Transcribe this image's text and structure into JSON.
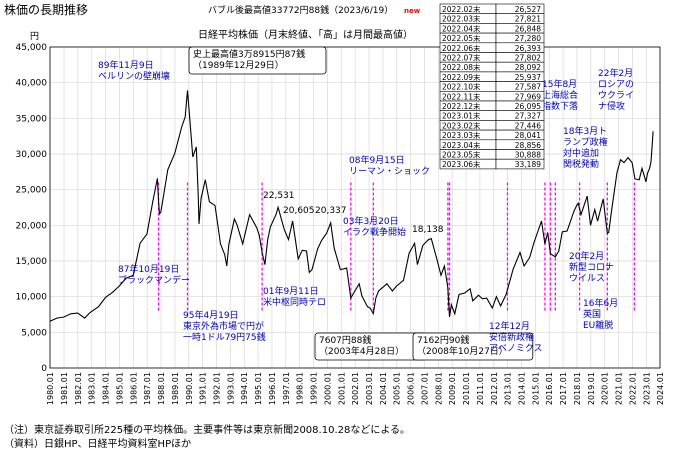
{
  "chart_data": {
    "type": "line",
    "title": "株価の長期推移",
    "subtitle": "日経平均株価（月末終値、「高」は月間最高値）",
    "header_note": "バブル後最高値33772円88銭（2023/6/19）",
    "header_badge": "new",
    "y_unit": "円",
    "ylim": [
      0,
      45000
    ],
    "y_ticks": [
      "0",
      "5,000",
      "10,000",
      "15,000",
      "20,000",
      "25,000",
      "30,000",
      "35,000",
      "40,000",
      "45,000"
    ],
    "x_ticks": [
      "1980.01",
      "1981.01",
      "1982.01",
      "1983.01",
      "1984.01",
      "1985.01",
      "1986.01",
      "1987.01",
      "1988.01",
      "1989.01",
      "1990.01",
      "1991.01",
      "1992.01",
      "1993.01",
      "1994.01",
      "1995.01",
      "1996.01",
      "1997.01",
      "1998.01",
      "1999.01",
      "2000.01",
      "2001.01",
      "2002.01",
      "2003.01",
      "2004.01",
      "2005.01",
      "2006.01",
      "2007.01",
      "2008.01",
      "2009.01",
      "2010.01",
      "2011.01",
      "2012.01",
      "2013.01",
      "2014.01",
      "2015.01",
      "2016.01",
      "2017.01",
      "2018.01",
      "2019.01",
      "2020.01",
      "2021.01",
      "2022.01",
      "2023.01",
      "2024.01"
    ],
    "xlim": [
      1980.0,
      2024.0
    ],
    "series": [
      {
        "color": "#000000",
        "points": [
          [
            1980.0,
            6560
          ],
          [
            1980.5,
            7000
          ],
          [
            1981.0,
            7150
          ],
          [
            1981.5,
            7600
          ],
          [
            1982.0,
            7700
          ],
          [
            1982.5,
            7000
          ],
          [
            1982.9,
            7800
          ],
          [
            1983.5,
            8600
          ],
          [
            1984.0,
            9900
          ],
          [
            1984.5,
            10600
          ],
          [
            1985.0,
            11500
          ],
          [
            1985.5,
            12600
          ],
          [
            1986.0,
            13000
          ],
          [
            1986.5,
            17500
          ],
          [
            1987.0,
            18800
          ],
          [
            1987.4,
            23200
          ],
          [
            1987.75,
            26600
          ],
          [
            1987.83,
            23300
          ],
          [
            1987.9,
            21600
          ],
          [
            1988.0,
            21900
          ],
          [
            1988.5,
            27800
          ],
          [
            1989.0,
            30100
          ],
          [
            1989.5,
            33800
          ],
          [
            1989.75,
            35200
          ],
          [
            1989.92,
            38915
          ],
          [
            1990.15,
            33300
          ],
          [
            1990.3,
            29600
          ],
          [
            1990.55,
            31000
          ],
          [
            1990.7,
            23900
          ],
          [
            1990.75,
            20200
          ],
          [
            1990.9,
            23800
          ],
          [
            1991.2,
            26400
          ],
          [
            1991.5,
            23300
          ],
          [
            1991.9,
            22800
          ],
          [
            1992.3,
            17400
          ],
          [
            1992.6,
            15900
          ],
          [
            1992.75,
            14300
          ],
          [
            1992.9,
            17300
          ],
          [
            1993.3,
            20900
          ],
          [
            1993.5,
            20000
          ],
          [
            1993.9,
            17400
          ],
          [
            1994.4,
            21500
          ],
          [
            1994.9,
            19700
          ],
          [
            1995.1,
            18600
          ],
          [
            1995.3,
            16200
          ],
          [
            1995.5,
            14500
          ],
          [
            1995.7,
            18000
          ],
          [
            1995.9,
            19800
          ],
          [
            1996.3,
            21500
          ],
          [
            1996.45,
            22531
          ],
          [
            1996.9,
            19400
          ],
          [
            1997.2,
            18000
          ],
          [
            1997.5,
            20605
          ],
          [
            1997.9,
            15300
          ],
          [
            1998.2,
            16500
          ],
          [
            1998.5,
            16400
          ],
          [
            1998.7,
            13400
          ],
          [
            1998.9,
            13800
          ],
          [
            1999.3,
            16700
          ],
          [
            1999.6,
            17900
          ],
          [
            1999.95,
            18900
          ],
          [
            2000.25,
            20337
          ],
          [
            2000.5,
            16800
          ],
          [
            2000.95,
            13800
          ],
          [
            2001.2,
            13900
          ],
          [
            2001.4,
            14000
          ],
          [
            2001.7,
            9800
          ],
          [
            2001.9,
            10500
          ],
          [
            2002.3,
            11800
          ],
          [
            2002.5,
            10100
          ],
          [
            2002.9,
            8600
          ],
          [
            2003.1,
            8400
          ],
          [
            2003.32,
            7607
          ],
          [
            2003.5,
            9800
          ],
          [
            2003.7,
            10800
          ],
          [
            2004.0,
            11300
          ],
          [
            2004.3,
            11800
          ],
          [
            2004.7,
            10800
          ],
          [
            2005.0,
            11500
          ],
          [
            2005.5,
            12300
          ],
          [
            2005.9,
            16100
          ],
          [
            2006.3,
            17500
          ],
          [
            2006.5,
            14500
          ],
          [
            2006.9,
            17200
          ],
          [
            2007.3,
            18000
          ],
          [
            2007.5,
            18138
          ],
          [
            2007.9,
            15300
          ],
          [
            2008.2,
            13000
          ],
          [
            2008.45,
            14300
          ],
          [
            2008.7,
            11200
          ],
          [
            2008.82,
            7162
          ],
          [
            2008.95,
            8860
          ],
          [
            2009.2,
            7600
          ],
          [
            2009.5,
            10300
          ],
          [
            2009.9,
            10500
          ],
          [
            2010.3,
            11100
          ],
          [
            2010.5,
            9400
          ],
          [
            2010.9,
            10200
          ],
          [
            2011.2,
            9700
          ],
          [
            2011.5,
            9800
          ],
          [
            2011.9,
            8400
          ],
          [
            2012.2,
            10000
          ],
          [
            2012.5,
            8700
          ],
          [
            2012.9,
            10300
          ],
          [
            2013.2,
            12400
          ],
          [
            2013.4,
            13800
          ],
          [
            2013.9,
            16200
          ],
          [
            2014.2,
            14300
          ],
          [
            2014.6,
            15500
          ],
          [
            2014.9,
            17500
          ],
          [
            2015.2,
            19200
          ],
          [
            2015.45,
            20600
          ],
          [
            2015.7,
            17400
          ],
          [
            2015.9,
            19000
          ],
          [
            2016.1,
            16000
          ],
          [
            2016.45,
            15600
          ],
          [
            2016.7,
            16400
          ],
          [
            2016.95,
            19100
          ],
          [
            2017.3,
            19200
          ],
          [
            2017.8,
            22000
          ],
          [
            2017.99,
            22800
          ],
          [
            2018.1,
            23100
          ],
          [
            2018.3,
            21500
          ],
          [
            2018.75,
            24100
          ],
          [
            2018.99,
            20000
          ],
          [
            2019.3,
            22200
          ],
          [
            2019.5,
            20600
          ],
          [
            2019.9,
            23700
          ],
          [
            2020.2,
            18900
          ],
          [
            2020.3,
            19000
          ],
          [
            2020.5,
            22000
          ],
          [
            2020.9,
            27400
          ],
          [
            2021.15,
            29200
          ],
          [
            2021.4,
            28800
          ],
          [
            2021.7,
            29500
          ],
          [
            2021.99,
            28800
          ],
          [
            2022.2,
            26500
          ],
          [
            2022.5,
            26400
          ],
          [
            2022.7,
            28000
          ],
          [
            2022.99,
            26100
          ],
          [
            2023.1,
            27300
          ],
          [
            2023.25,
            28000
          ],
          [
            2023.35,
            28900
          ],
          [
            2023.42,
            30900
          ],
          [
            2023.5,
            33189
          ]
        ]
      }
    ],
    "event_lines": [
      1987.83,
      1989.92,
      1995.3,
      2001.7,
      2003.32,
      2008.7,
      2008.82,
      2013.0,
      2015.7,
      2016.1,
      2016.45,
      2018.2,
      2020.2,
      2022.15
    ],
    "annotations": [
      {
        "id": "berlin",
        "lines": [
          "89年11月9日",
          "ベルリンの壁崩壊"
        ],
        "color": "#0000c8",
        "boxed": false
      },
      {
        "id": "peak",
        "lines": [
          "史上最高値3万8915円87銭",
          "（1989年12月29日）"
        ],
        "color": "#000000",
        "boxed": true
      },
      {
        "id": "blackmonday",
        "lines": [
          "87年10月19日",
          "ブラックマンデー"
        ],
        "color": "#0000c8",
        "boxed": false
      },
      {
        "id": "yen79",
        "lines": [
          "95年4月19日",
          "東京外為市場で円が",
          "一時1ドル79円75銭"
        ],
        "color": "#0000c8",
        "boxed": false
      },
      {
        "id": "v22531",
        "lines": [
          "22,531"
        ],
        "color": "#000000",
        "boxed": false
      },
      {
        "id": "v20605",
        "lines": [
          "20,605"
        ],
        "color": "#000000",
        "boxed": false
      },
      {
        "id": "v20337",
        "lines": [
          "20,337"
        ],
        "color": "#000000",
        "boxed": false
      },
      {
        "id": "terror",
        "lines": [
          "01年9月11日",
          "米中枢同時テロ"
        ],
        "color": "#0000c8",
        "boxed": false
      },
      {
        "id": "iraq",
        "lines": [
          "03年3月20日",
          "イラク戦争開始"
        ],
        "color": "#0000c8",
        "boxed": false
      },
      {
        "id": "low2003",
        "lines": [
          "7607円88銭",
          "（2003年4月28日）"
        ],
        "color": "#000000",
        "boxed": true
      },
      {
        "id": "v18138",
        "lines": [
          "18,138"
        ],
        "color": "#000000",
        "boxed": false
      },
      {
        "id": "lehman",
        "lines": [
          "08年9月15日",
          "リーマン・ショック"
        ],
        "color": "#0000c8",
        "boxed": false
      },
      {
        "id": "low2008",
        "lines": [
          "7162円90銭",
          "（2008年10月27日）"
        ],
        "color": "#000000",
        "boxed": true
      },
      {
        "id": "abe",
        "lines": [
          "12年12月",
          "安倍新政権",
          "アベノミクス"
        ],
        "color": "#0000c8",
        "boxed": false
      },
      {
        "id": "shanghai",
        "lines": [
          "15年8月",
          "上海総合",
          "指数下落"
        ],
        "color": "#0000c8",
        "boxed": false
      },
      {
        "id": "brexit",
        "lines": [
          "16年6月",
          "英国",
          "EU離脱"
        ],
        "color": "#0000c8",
        "boxed": false
      },
      {
        "id": "trump",
        "lines": [
          "18年3月ト",
          "ランプ政権",
          "対中追加",
          "関税発動"
        ],
        "color": "#0000c8",
        "boxed": false
      },
      {
        "id": "corona",
        "lines": [
          "20年2月",
          "新型コロナ",
          "ウイルス"
        ],
        "color": "#0000c8",
        "boxed": false
      },
      {
        "id": "ukraine",
        "lines": [
          "22年2月",
          "ロシアの",
          "ウクライ",
          "ナ侵攻"
        ],
        "color": "#0000c8",
        "boxed": false
      }
    ],
    "monthly_table": [
      [
        "2022.02末",
        "26,527"
      ],
      [
        "2022.03末",
        "27,821"
      ],
      [
        "2022.04末",
        "26,848"
      ],
      [
        "2022.05末",
        "27,280"
      ],
      [
        "2022.06末",
        "26,393"
      ],
      [
        "2022.07末",
        "27,802"
      ],
      [
        "2022.08末",
        "28,092"
      ],
      [
        "2022.09末",
        "25,937"
      ],
      [
        "2022.10末",
        "27,587"
      ],
      [
        "2022.11末",
        "27,969"
      ],
      [
        "2022.12末",
        "26,095"
      ],
      [
        "2023.01末",
        "27,327"
      ],
      [
        "2023.02末",
        "27,446"
      ],
      [
        "2023.03末",
        "28,041"
      ],
      [
        "2023.04末",
        "28,856"
      ],
      [
        "2023.05末",
        "30,888"
      ],
      [
        "2023.06末",
        "33,189"
      ]
    ],
    "grid": true,
    "legend": "none"
  },
  "footer": {
    "note1": "（注）東京証券取引所225種の平均株価。主要事件等は東京新聞2008.10.28などによる。",
    "note2": "（資料）日銀HP、日経平均資料室HPほか"
  },
  "colors": {
    "line": "#000000",
    "annotation": "#0000c8",
    "event_line": "#ff00ff",
    "badge": "#ff0000",
    "grid": "#d8d8d8"
  }
}
